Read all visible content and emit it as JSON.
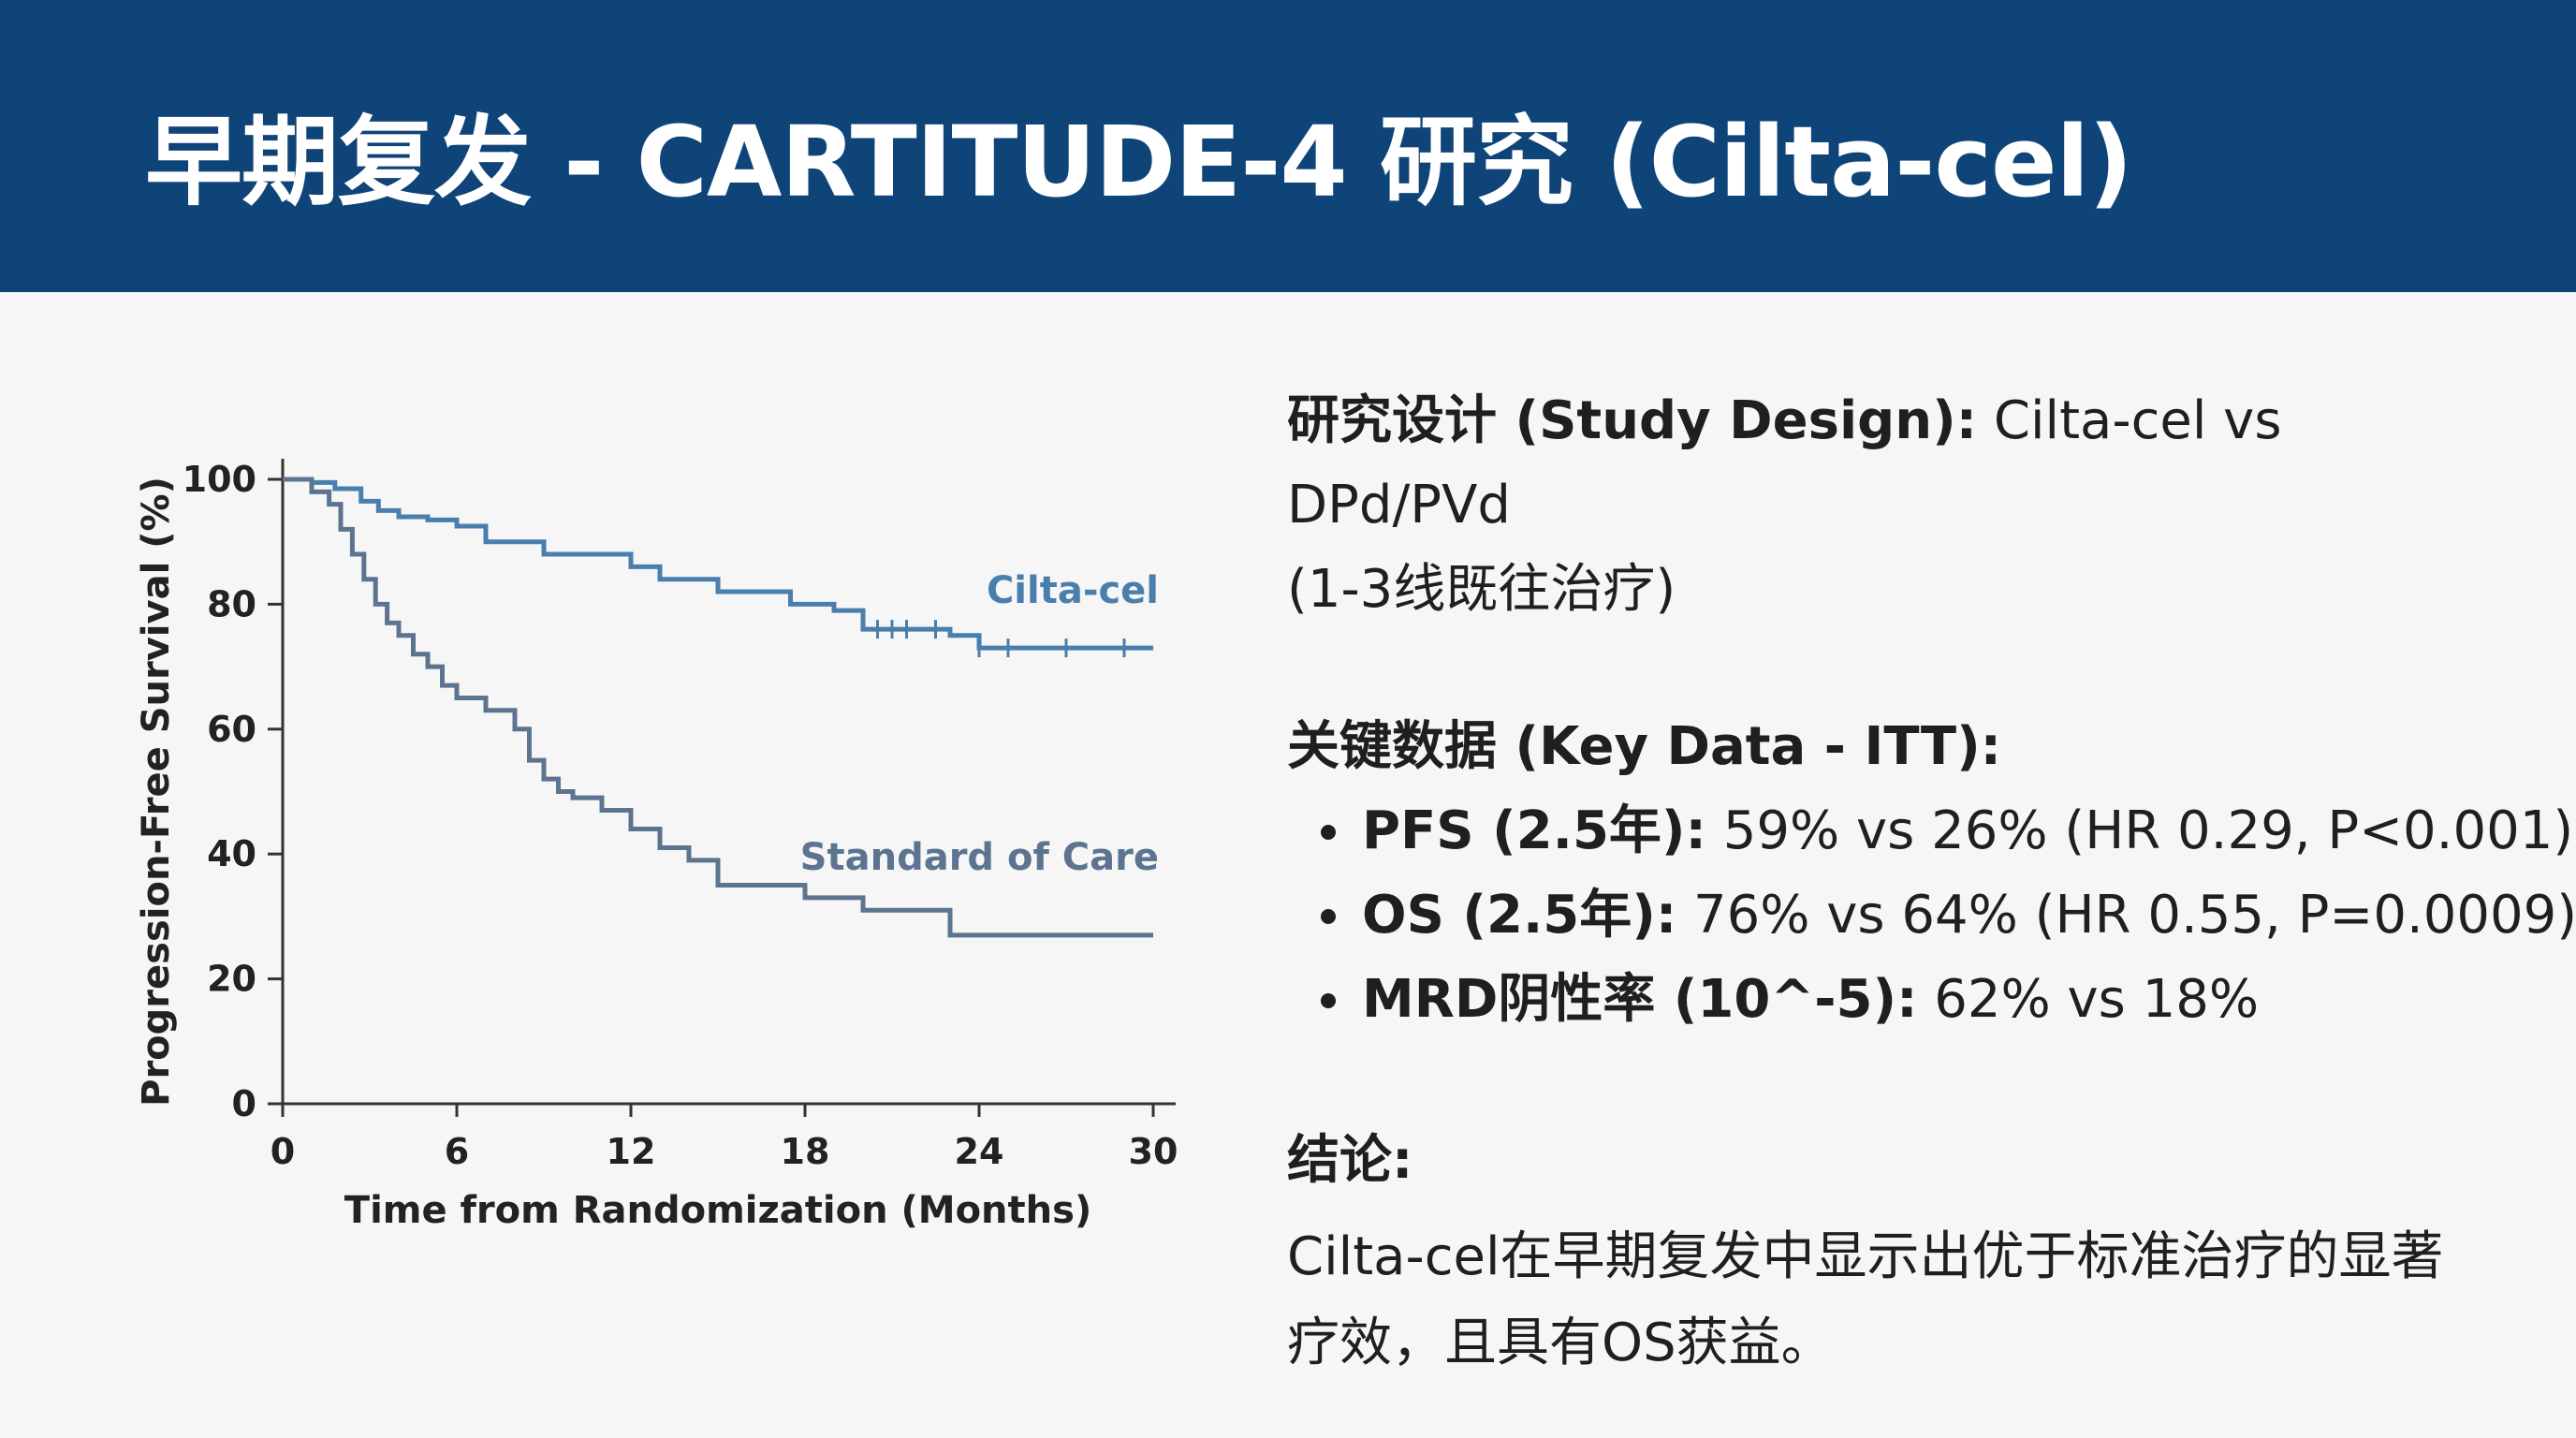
{
  "header": {
    "title": "早期复发 - CARTITUDE-4 研究 (Cilta-cel)"
  },
  "colors": {
    "header_bg": "#0f4478",
    "cilta_line": "#4a7fad",
    "soc_line": "#5d7490",
    "axis": "#333333"
  },
  "chart_data": {
    "type": "line",
    "xlabel": "Time from Randomization (Months)",
    "ylabel": "Progression-Free Survival (%)",
    "xlim": [
      0,
      30
    ],
    "ylim": [
      0,
      100
    ],
    "xticks": [
      "0",
      "6",
      "12",
      "18",
      "24",
      "30"
    ],
    "yticks": [
      "0",
      "20",
      "40",
      "60",
      "80",
      "100"
    ],
    "grid": false,
    "series": [
      {
        "name": "Cilta-cel",
        "step": true,
        "x": [
          0,
          1,
          1.8,
          2.7,
          3.3,
          4,
          5,
          6,
          7,
          9,
          12,
          13,
          15,
          17.5,
          19,
          20,
          23,
          24,
          25,
          30
        ],
        "y": [
          100,
          99.5,
          98.5,
          96.5,
          95,
          94,
          93.5,
          92.5,
          90,
          88,
          86,
          84,
          82,
          80,
          79,
          76,
          75,
          73,
          73,
          73
        ],
        "censor_x": [
          20.5,
          21,
          21.5,
          22.5,
          24,
          25,
          27,
          29
        ]
      },
      {
        "name": "Standard of Care",
        "step": true,
        "x": [
          0,
          1,
          1.6,
          2,
          2.4,
          2.8,
          3.2,
          3.6,
          4,
          4.5,
          5,
          5.5,
          6,
          7,
          8,
          8.5,
          9,
          9.5,
          10,
          11,
          12,
          13,
          14,
          15,
          16,
          18,
          20,
          23,
          30
        ],
        "y": [
          100,
          98,
          96,
          92,
          88,
          84,
          80,
          77,
          75,
          72,
          70,
          67,
          65,
          63,
          60,
          55,
          52,
          50,
          49,
          47,
          44,
          41,
          39,
          35,
          35,
          33,
          31,
          27,
          27
        ]
      }
    ]
  },
  "panel": {
    "design_label": "研究设计 (Study Design):",
    "design_value": " Cilta-cel vs DPd/PVd",
    "design_line2": "(1-3线既往治疗)",
    "key_label": "关键数据 (Key Data - ITT):",
    "bullets": [
      {
        "label": "PFS (2.5年):",
        "value": " 59% vs 26% (HR 0.29, P<0.001)"
      },
      {
        "label": "OS (2.5年):",
        "value": " 76% vs 64% (HR 0.55, P=0.0009)"
      },
      {
        "label": "MRD阴性率 (10^-5):",
        "value": " 62% vs 18%"
      }
    ],
    "conclusion_label": "结论:",
    "conclusion_line1": "Cilta-cel在早期复发中显示出优于标准治疗的显著",
    "conclusion_line2": "疗效，且具有OS获益。"
  }
}
